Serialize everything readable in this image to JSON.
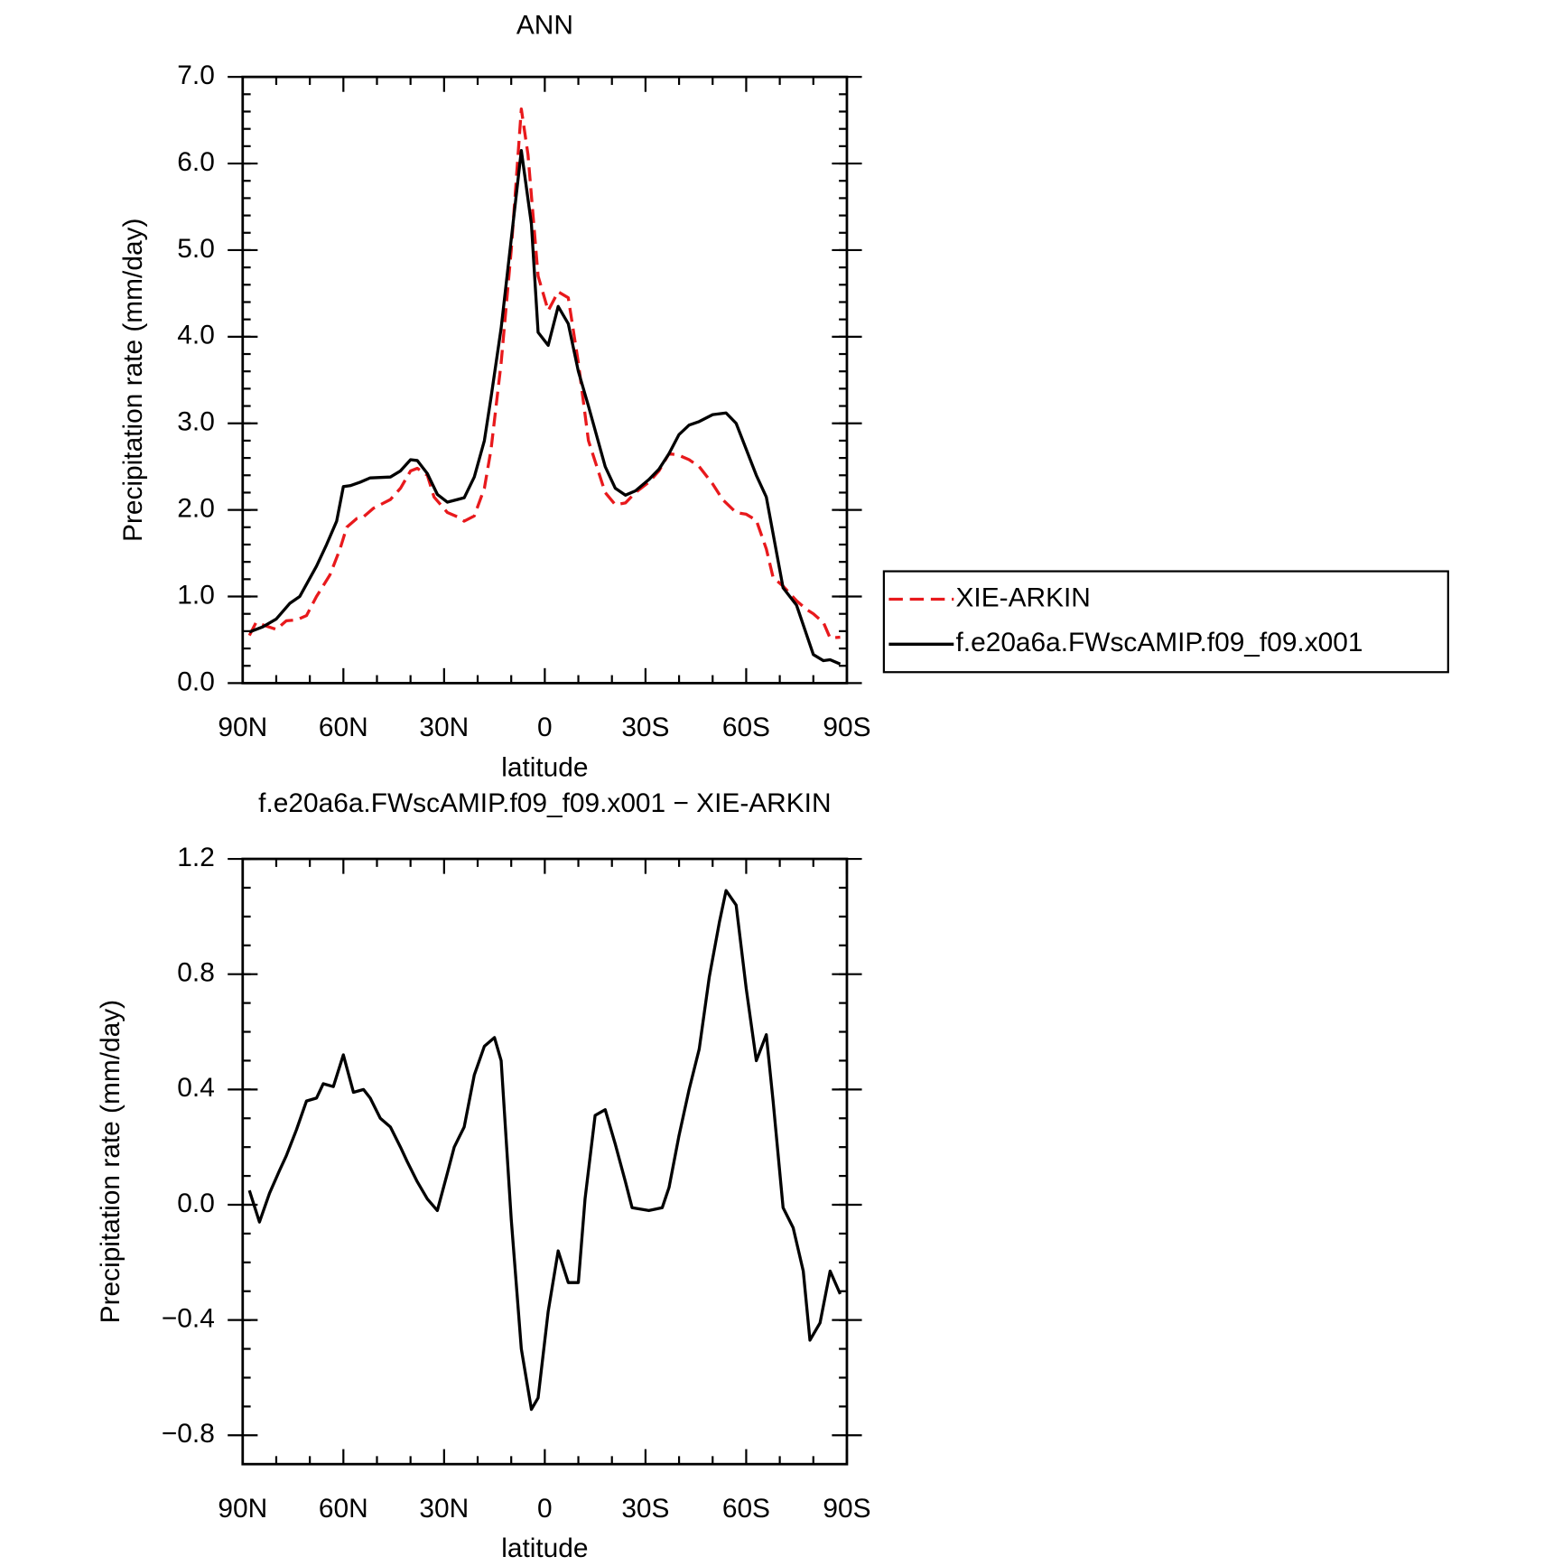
{
  "chart_data": [
    {
      "type": "line",
      "title": "ANN",
      "xlabel": "latitude",
      "ylabel": "Precipitation rate (mm/day)",
      "xlim": [
        90,
        -90
      ],
      "xticks": [
        {
          "value": 90,
          "label": "90N"
        },
        {
          "value": 60,
          "label": "60N"
        },
        {
          "value": 30,
          "label": "30N"
        },
        0,
        {
          "value": -30,
          "label": "30S"
        },
        {
          "value": -60,
          "label": "60S"
        },
        {
          "value": -90,
          "label": "90S"
        }
      ],
      "ylim": [
        0,
        7
      ],
      "yticks": [
        {
          "value": 0,
          "label": "0.0"
        },
        {
          "value": 1,
          "label": "1.0"
        },
        {
          "value": 2,
          "label": "2.0"
        },
        {
          "value": 3,
          "label": "3.0"
        },
        {
          "value": 4,
          "label": "4.0"
        },
        {
          "value": 5,
          "label": "5.0"
        },
        {
          "value": 6,
          "label": "6.0"
        },
        {
          "value": 7,
          "label": "7.0"
        }
      ],
      "legend": "right",
      "series": [
        {
          "name": "XIE-ARKIN",
          "color": "#e8191c",
          "line_style": "dashed",
          "x": [
            88,
            86,
            83,
            80,
            77,
            74,
            71,
            68,
            64,
            61,
            59,
            56,
            54,
            51,
            46,
            43,
            40,
            38,
            35,
            33,
            29,
            26,
            24,
            21,
            18,
            16,
            13,
            10,
            7,
            5,
            2,
            -1,
            -4,
            -7,
            -10,
            -13,
            -18,
            -21,
            -24,
            -27,
            -31,
            -34,
            -37,
            -40,
            -43,
            -46,
            -50,
            -53,
            -57,
            -60,
            -63,
            -66,
            -68,
            -71,
            -75,
            -78,
            -80,
            -83,
            -85,
            -88
          ],
          "values": [
            0.55,
            0.7,
            0.66,
            0.62,
            0.72,
            0.73,
            0.78,
            1.0,
            1.25,
            1.55,
            1.8,
            1.9,
            1.92,
            2.02,
            2.12,
            2.25,
            2.45,
            2.48,
            2.4,
            2.15,
            1.97,
            1.92,
            1.87,
            1.93,
            2.25,
            2.7,
            3.7,
            5.0,
            6.63,
            6.1,
            4.7,
            4.3,
            4.52,
            4.45,
            3.7,
            2.8,
            2.2,
            2.06,
            2.08,
            2.2,
            2.32,
            2.45,
            2.65,
            2.63,
            2.58,
            2.5,
            2.3,
            2.12,
            1.97,
            1.95,
            1.88,
            1.55,
            1.22,
            1.12,
            0.95,
            0.85,
            0.8,
            0.7,
            0.52,
            0.53
          ]
        },
        {
          "name": "f.e20a6a.FWscAMIP.f09_f09.x001",
          "color": "#000000",
          "line_style": "solid",
          "x": [
            88,
            84,
            80,
            76,
            73,
            68,
            65,
            62,
            60,
            58,
            55,
            52,
            46,
            43,
            40,
            38,
            35,
            32,
            29,
            24,
            21,
            18,
            16,
            13,
            7,
            4,
            2,
            -1,
            -4,
            -7,
            -10,
            -13,
            -18,
            -21,
            -24,
            -27,
            -31,
            -34,
            -37,
            -40,
            -43,
            -46,
            -50,
            -54,
            -57,
            -60,
            -63,
            -66,
            -71,
            -75,
            -80,
            -83,
            -85,
            -88
          ],
          "values": [
            0.59,
            0.65,
            0.74,
            0.92,
            1.0,
            1.35,
            1.6,
            1.87,
            2.27,
            2.28,
            2.32,
            2.37,
            2.38,
            2.45,
            2.58,
            2.57,
            2.42,
            2.18,
            2.09,
            2.14,
            2.38,
            2.8,
            3.3,
            4.1,
            6.15,
            5.3,
            4.05,
            3.9,
            4.35,
            4.15,
            3.6,
            3.2,
            2.5,
            2.25,
            2.17,
            2.22,
            2.35,
            2.47,
            2.65,
            2.87,
            2.98,
            3.02,
            3.1,
            3.12,
            3.0,
            2.7,
            2.4,
            2.15,
            1.1,
            0.9,
            0.33,
            0.26,
            0.27,
            0.22
          ]
        }
      ]
    },
    {
      "type": "line",
      "title": "f.e20a6a.FWscAMIP.f09_f09.x001 − XIE-ARKIN",
      "xlabel": "latitude",
      "ylabel": "Precipitation rate (mm/day)",
      "xlim": [
        90,
        -90
      ],
      "xticks": [
        {
          "value": 90,
          "label": "90N"
        },
        {
          "value": 60,
          "label": "60N"
        },
        {
          "value": 30,
          "label": "30N"
        },
        0,
        {
          "value": -30,
          "label": "30S"
        },
        {
          "value": -60,
          "label": "60S"
        },
        {
          "value": -90,
          "label": "90S"
        }
      ],
      "ylim": [
        -0.9,
        1.2
      ],
      "yticks": [
        {
          "value": -0.8,
          "label": "−0.8"
        },
        {
          "value": -0.4,
          "label": "−0.4"
        },
        {
          "value": 0,
          "label": "0.0"
        },
        0.4,
        0.8,
        1.2
      ],
      "series": [
        {
          "color": "#000000",
          "line_style": "solid",
          "x": [
            88,
            85,
            82,
            79,
            77,
            74,
            71,
            68,
            66,
            63,
            60,
            57,
            54,
            52,
            49,
            46,
            43,
            41,
            38,
            35,
            32,
            29,
            27,
            24,
            21,
            18,
            15,
            13,
            10,
            7,
            4,
            2,
            -1,
            -4,
            -7,
            -10,
            -12,
            -15,
            -18,
            -21,
            -24,
            -26,
            -31,
            -35,
            -37,
            -40,
            -43,
            -46,
            -49,
            -52,
            -54,
            -57,
            -60,
            -63,
            -66,
            -68,
            -71,
            -74,
            -77,
            -79,
            -82,
            -85,
            -88
          ],
          "values": [
            0.05,
            -0.06,
            0.04,
            0.12,
            0.17,
            0.26,
            0.36,
            0.37,
            0.42,
            0.41,
            0.52,
            0.39,
            0.4,
            0.37,
            0.3,
            0.27,
            0.2,
            0.15,
            0.08,
            0.02,
            -0.02,
            0.11,
            0.2,
            0.27,
            0.45,
            0.55,
            0.58,
            0.5,
            -0.05,
            -0.5,
            -0.71,
            -0.67,
            -0.37,
            -0.16,
            -0.27,
            -0.27,
            0.02,
            0.31,
            0.33,
            0.21,
            0.08,
            -0.01,
            -0.02,
            -0.01,
            0.06,
            0.24,
            0.4,
            0.54,
            0.79,
            0.98,
            1.09,
            1.04,
            0.75,
            0.5,
            0.59,
            0.36,
            -0.01,
            -0.08,
            -0.23,
            -0.47,
            -0.41,
            -0.23,
            -0.31
          ]
        }
      ]
    }
  ]
}
